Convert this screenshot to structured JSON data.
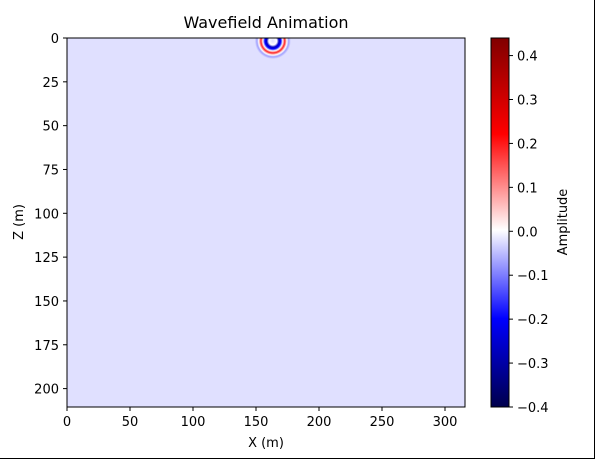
{
  "chart_data": {
    "type": "heatmap",
    "title": "Wavefield Animation",
    "xlabel": "X (m)",
    "ylabel": "Z (m)",
    "xlim": [
      0,
      310
    ],
    "ylim": [
      210,
      0
    ],
    "xticks": [
      "0",
      "50",
      "100",
      "150",
      "200",
      "250",
      "300"
    ],
    "yticks": [
      "0",
      "25",
      "50",
      "75",
      "100",
      "125",
      "150",
      "175",
      "200"
    ],
    "background_value": -0.05,
    "colormap": "seismic",
    "colorbar": {
      "label": "Amplitude",
      "range": [
        -0.4,
        0.44
      ],
      "ticks": [
        "0.4",
        "0.3",
        "0.2",
        "0.1",
        "0.0",
        "−0.1",
        "−0.2",
        "−0.3",
        "−0.4"
      ]
    },
    "wavefront": {
      "source_x": 157,
      "source_z": 0,
      "rings": [
        {
          "radius": 4,
          "value": -0.4
        },
        {
          "radius": 8,
          "value": 0.3
        },
        {
          "radius": 11,
          "value": -0.2
        }
      ]
    }
  }
}
